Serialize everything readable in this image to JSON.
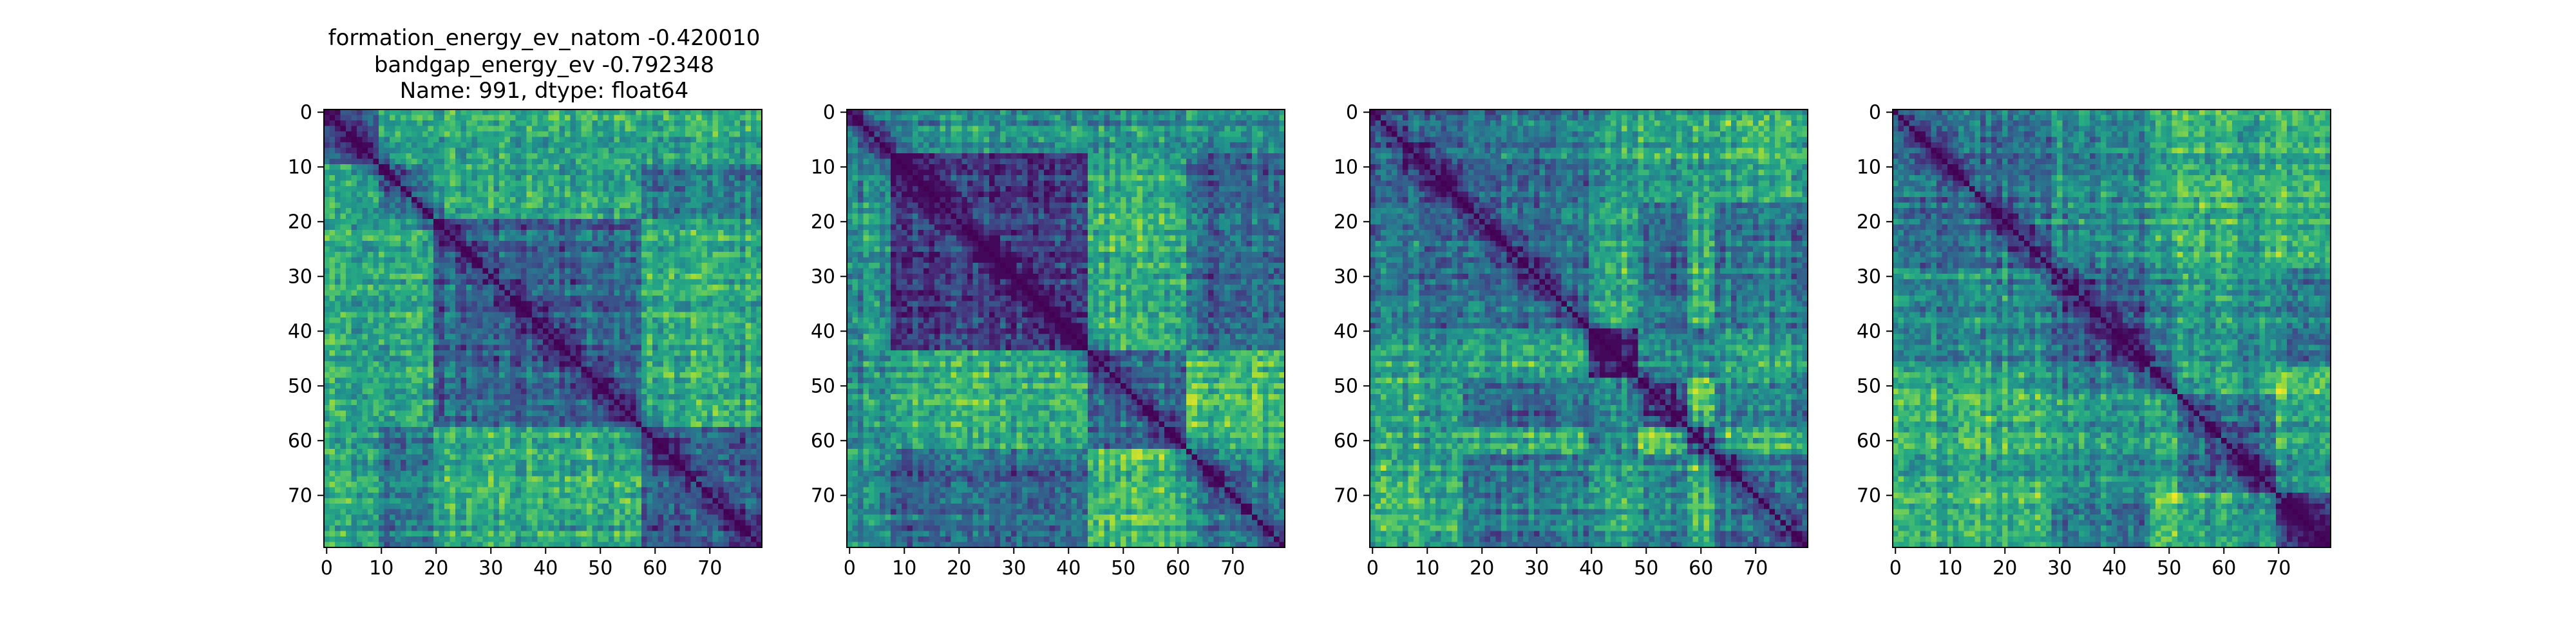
{
  "figure": {
    "title_lines": [
      "formation_energy_ev_natom   -0.420010",
      "bandgap_energy_ev          -0.792348",
      "Name: 991, dtype: float64"
    ]
  },
  "chart_data": [
    {
      "type": "heatmap",
      "colormap": "viridis",
      "matrix_size": 80,
      "x_ticks": [
        0,
        10,
        20,
        30,
        40,
        50,
        60,
        70
      ],
      "y_ticks": [
        0,
        10,
        20,
        30,
        40,
        50,
        60,
        70
      ],
      "xlim": [
        -0.5,
        79.5
      ],
      "ylim": [
        79.5,
        -0.5
      ],
      "diagonal_value": 0,
      "pattern_seed": 11,
      "block_boundaries": [
        10,
        20,
        58
      ]
    },
    {
      "type": "heatmap",
      "colormap": "viridis",
      "matrix_size": 80,
      "x_ticks": [
        0,
        10,
        20,
        30,
        40,
        50,
        60,
        70
      ],
      "y_ticks": [
        0,
        10,
        20,
        30,
        40,
        50,
        60,
        70
      ],
      "xlim": [
        -0.5,
        79.5
      ],
      "ylim": [
        79.5,
        -0.5
      ],
      "diagonal_value": 0,
      "pattern_seed": 29,
      "block_boundaries": [
        3,
        8,
        44,
        62
      ]
    },
    {
      "type": "heatmap",
      "colormap": "viridis",
      "matrix_size": 80,
      "x_ticks": [
        0,
        10,
        20,
        30,
        40,
        50,
        60,
        70
      ],
      "y_ticks": [
        0,
        10,
        20,
        30,
        40,
        50,
        60,
        70
      ],
      "xlim": [
        -0.5,
        79.5
      ],
      "ylim": [
        79.5,
        -0.5
      ],
      "diagonal_value": 0,
      "pattern_seed": 47,
      "block_boundaries": [
        17,
        40,
        49,
        58,
        63
      ]
    },
    {
      "type": "heatmap",
      "colormap": "viridis",
      "matrix_size": 80,
      "x_ticks": [
        0,
        10,
        20,
        30,
        40,
        50,
        60,
        70
      ],
      "y_ticks": [
        0,
        10,
        20,
        30,
        40,
        50,
        60,
        70
      ],
      "xlim": [
        -0.5,
        79.5
      ],
      "ylim": [
        79.5,
        -0.5
      ],
      "diagonal_value": 0,
      "pattern_seed": 83,
      "block_boundaries": [
        29,
        47,
        52,
        70
      ]
    }
  ]
}
